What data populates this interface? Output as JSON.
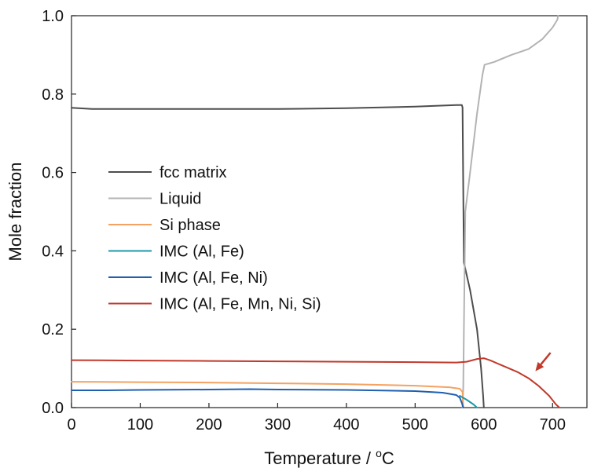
{
  "chart_data": {
    "type": "line",
    "xlabel": "Temperature / °C",
    "xlabel_main": "Temperature / ",
    "xlabel_sup": "o",
    "xlabel_unit": "C",
    "ylabel": "Mole fraction",
    "xlim": [
      0,
      750
    ],
    "ylim": [
      0,
      1.0
    ],
    "x_ticks": [
      0,
      100,
      200,
      300,
      400,
      500,
      600,
      700
    ],
    "y_ticks": [
      0.0,
      0.2,
      0.4,
      0.6,
      0.8,
      1.0
    ],
    "x_tick_labels": [
      "0",
      "100",
      "200",
      "300",
      "400",
      "500",
      "600",
      "700"
    ],
    "y_tick_labels": [
      "0.0",
      "0.2",
      "0.4",
      "0.6",
      "0.8",
      "1.0"
    ],
    "grid": false,
    "legend_position": "center-left",
    "series": [
      {
        "name": "fcc matrix",
        "color": "#4d4d4d",
        "points": [
          [
            0,
            0.765
          ],
          [
            30,
            0.762
          ],
          [
            100,
            0.762
          ],
          [
            200,
            0.762
          ],
          [
            300,
            0.762
          ],
          [
            400,
            0.764
          ],
          [
            500,
            0.768
          ],
          [
            560,
            0.772
          ],
          [
            568,
            0.772
          ],
          [
            569,
            0.766
          ],
          [
            571,
            0.37
          ],
          [
            580,
            0.3
          ],
          [
            590,
            0.2
          ],
          [
            596,
            0.1
          ],
          [
            599,
            0.03
          ],
          [
            600,
            0.0
          ]
        ]
      },
      {
        "name": "Liquid",
        "color": "#b3b3b3",
        "points": [
          [
            569,
            0.0
          ],
          [
            570,
            0.05
          ],
          [
            571,
            0.2
          ],
          [
            573,
            0.5
          ],
          [
            580,
            0.6
          ],
          [
            590,
            0.75
          ],
          [
            598,
            0.85
          ],
          [
            601,
            0.875
          ],
          [
            615,
            0.882
          ],
          [
            640,
            0.9
          ],
          [
            665,
            0.915
          ],
          [
            685,
            0.94
          ],
          [
            700,
            0.97
          ],
          [
            707,
            0.99
          ],
          [
            708,
            1.0
          ]
        ]
      },
      {
        "name": "Si phase",
        "color": "#f4a261",
        "points": [
          [
            0,
            0.066
          ],
          [
            100,
            0.065
          ],
          [
            200,
            0.064
          ],
          [
            300,
            0.062
          ],
          [
            400,
            0.06
          ],
          [
            500,
            0.056
          ],
          [
            550,
            0.052
          ],
          [
            565,
            0.048
          ],
          [
            569,
            0.04
          ],
          [
            570,
            0.0
          ]
        ]
      },
      {
        "name": "IMC (Al, Fe)",
        "color": "#1b9aaa",
        "points": [
          [
            565,
            0.03
          ],
          [
            575,
            0.02
          ],
          [
            585,
            0.008
          ],
          [
            590,
            0.0
          ]
        ]
      },
      {
        "name": "IMC (Al, Fe, Ni)",
        "color": "#1f5fb0",
        "points": [
          [
            0,
            0.044
          ],
          [
            50,
            0.044
          ],
          [
            100,
            0.045
          ],
          [
            200,
            0.046
          ],
          [
            260,
            0.047
          ],
          [
            300,
            0.046
          ],
          [
            400,
            0.045
          ],
          [
            500,
            0.042
          ],
          [
            540,
            0.038
          ],
          [
            560,
            0.032
          ],
          [
            565,
            0.025
          ],
          [
            568,
            0.012
          ],
          [
            570,
            0.0
          ]
        ]
      },
      {
        "name": "IMC (Al, Fe, Mn, Ni, Si)",
        "color": "#c0392b",
        "points": [
          [
            0,
            0.121
          ],
          [
            100,
            0.12
          ],
          [
            200,
            0.119
          ],
          [
            300,
            0.118
          ],
          [
            400,
            0.117
          ],
          [
            500,
            0.116
          ],
          [
            560,
            0.115
          ],
          [
            575,
            0.117
          ],
          [
            590,
            0.124
          ],
          [
            600,
            0.126
          ],
          [
            610,
            0.12
          ],
          [
            630,
            0.105
          ],
          [
            650,
            0.09
          ],
          [
            665,
            0.075
          ],
          [
            680,
            0.055
          ],
          [
            695,
            0.03
          ],
          [
            705,
            0.008
          ],
          [
            710,
            0.0
          ]
        ]
      }
    ],
    "annotations": [
      {
        "type": "arrow",
        "color": "#c0392b",
        "from": [
          697,
          0.14
        ],
        "to": [
          675,
          0.093
        ]
      }
    ]
  }
}
